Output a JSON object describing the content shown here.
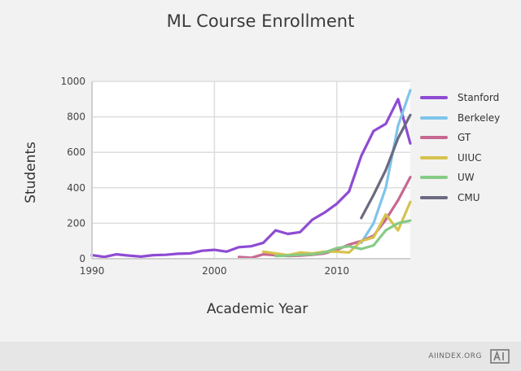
{
  "chart_data": {
    "type": "line",
    "title": "ML Course Enrollment",
    "xlabel": "Academic Year",
    "ylabel": "Students",
    "xlim": [
      1990,
      2016
    ],
    "ylim": [
      0,
      1000
    ],
    "xticks": [
      "1990",
      "2000",
      "2010"
    ],
    "xtick_values": [
      1990,
      2000,
      2010
    ],
    "yticks": [
      "0",
      "200",
      "400",
      "600",
      "800",
      "1000"
    ],
    "ytick_values": [
      0,
      200,
      400,
      600,
      800,
      1000
    ],
    "grid": true,
    "legend_position": "right",
    "series": [
      {
        "name": "Stanford",
        "color": "#8e4bd3",
        "x": [
          1990,
          1991,
          1992,
          1993,
          1994,
          1995,
          1996,
          1997,
          1998,
          1999,
          2000,
          2001,
          2002,
          2003,
          2004,
          2005,
          2006,
          2007,
          2008,
          2009,
          2010,
          2011,
          2012,
          2013,
          2014,
          2015,
          2016
        ],
        "y": [
          20,
          10,
          25,
          18,
          12,
          20,
          22,
          28,
          30,
          45,
          50,
          40,
          65,
          70,
          90,
          160,
          140,
          150,
          220,
          260,
          310,
          380,
          580,
          720,
          760,
          900,
          650
        ]
      },
      {
        "name": "Berkeley",
        "color": "#7fc4ea",
        "x": [
          2012,
          2013,
          2014,
          2015,
          2016
        ],
        "y": [
          90,
          200,
          400,
          750,
          950
        ]
      },
      {
        "name": "GT",
        "color": "#c76891",
        "x": [
          2002,
          2003,
          2004,
          2005,
          2006,
          2007,
          2008,
          2009,
          2010,
          2011,
          2012,
          2013,
          2014,
          2015,
          2016
        ],
        "y": [
          10,
          5,
          25,
          20,
          15,
          18,
          22,
          30,
          50,
          80,
          100,
          130,
          220,
          330,
          460
        ]
      },
      {
        "name": "UIUC",
        "color": "#d7c24c",
        "x": [
          2004,
          2005,
          2006,
          2007,
          2008,
          2009,
          2010,
          2011,
          2012,
          2013,
          2014,
          2015,
          2016
        ],
        "y": [
          40,
          30,
          20,
          35,
          30,
          40,
          40,
          35,
          100,
          120,
          250,
          160,
          320
        ]
      },
      {
        "name": "UW",
        "color": "#86ca86",
        "x": [
          2005,
          2006,
          2007,
          2008,
          2009,
          2010,
          2011,
          2012,
          2013,
          2014,
          2015,
          2016
        ],
        "y": [
          15,
          18,
          22,
          25,
          35,
          60,
          70,
          55,
          75,
          160,
          200,
          215
        ]
      },
      {
        "name": "CMU",
        "color": "#6b6a80",
        "x": [
          2012,
          2013,
          2014,
          2015,
          2016
        ],
        "y": [
          230,
          360,
          500,
          680,
          810
        ]
      }
    ]
  },
  "footer": {
    "source_label": "AIINDEX.ORG",
    "logo_name": "ai-index-logo"
  }
}
